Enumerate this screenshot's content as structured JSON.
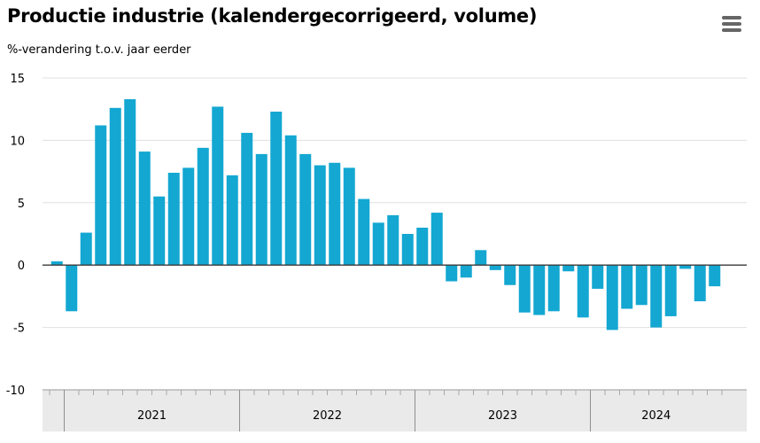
{
  "header": {
    "title": "Productie industrie (kalendergecorrigeerd, volume)",
    "subtitle": "%-verandering t.o.v. jaar eerder",
    "menu_icon": "hamburger-menu-icon"
  },
  "colors": {
    "bar": "#13a7d2",
    "grid": "#e0e0e0",
    "zero_line": "#3a3a3a",
    "axis_band": "#eaeaea"
  },
  "chart_data": {
    "type": "bar",
    "title": "Productie industrie (kalendergecorrigeerd, volume)",
    "subtitle": "%-verandering t.o.v. jaar eerder",
    "xlabel": "",
    "ylabel": "",
    "ylim": [
      -10,
      15
    ],
    "yticks": [
      15,
      10,
      5,
      0,
      -5,
      -10
    ],
    "grid": true,
    "legend": "none",
    "year_groups": [
      {
        "label": "2021",
        "months": 12
      },
      {
        "label": "2022",
        "months": 12
      },
      {
        "label": "2023",
        "months": 12
      },
      {
        "label": "2024",
        "months": 9
      }
    ],
    "categories": [
      "2020-12",
      "2021-01",
      "2021-02",
      "2021-03",
      "2021-04",
      "2021-05",
      "2021-06",
      "2021-07",
      "2021-08",
      "2021-09",
      "2021-10",
      "2021-11",
      "2021-12",
      "2022-01",
      "2022-02",
      "2022-03",
      "2022-04",
      "2022-05",
      "2022-06",
      "2022-07",
      "2022-08",
      "2022-09",
      "2022-10",
      "2022-11",
      "2022-12",
      "2023-01",
      "2023-02",
      "2023-03",
      "2023-04",
      "2023-05",
      "2023-06",
      "2023-07",
      "2023-08",
      "2023-09",
      "2023-10",
      "2023-11",
      "2023-12",
      "2024-01",
      "2024-02",
      "2024-03",
      "2024-04",
      "2024-05",
      "2024-06",
      "2024-07",
      "2024-08",
      "2024-09"
    ],
    "values": [
      0.3,
      -3.7,
      2.6,
      11.2,
      12.6,
      13.3,
      9.1,
      5.5,
      7.4,
      7.8,
      9.4,
      12.7,
      7.2,
      10.6,
      8.9,
      12.3,
      10.4,
      8.9,
      8.0,
      8.2,
      7.8,
      5.3,
      3.4,
      4.0,
      2.5,
      3.0,
      4.2,
      -1.3,
      -1.0,
      1.2,
      -0.4,
      -1.6,
      -3.8,
      -4.0,
      -3.7,
      -0.5,
      -4.2,
      -1.9,
      -5.2,
      -3.5,
      -3.2,
      -5.0,
      -4.1,
      -0.3,
      -2.9,
      -1.7
    ]
  }
}
